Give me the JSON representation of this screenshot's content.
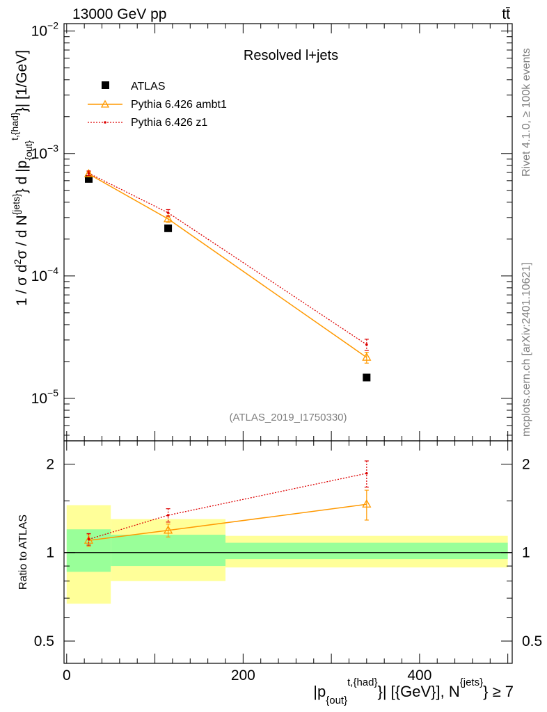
{
  "header": {
    "left": "13000 GeV pp",
    "right": "tt̄"
  },
  "side": {
    "rivet": "Rivet 4.1.0, ≥ 100k events",
    "mcplots": "mcplots.cern.ch [arXiv:2401.10621]"
  },
  "chart_data": [
    {
      "type": "scatter",
      "title": "Resolved l+jets",
      "analysis_id": "(ATLAS_2019_I1750330)",
      "xscale": "linear",
      "yscale": "log",
      "xlim": [
        -3,
        505
      ],
      "ylim": [
        4.5e-06,
        0.0115
      ],
      "ylabel": {
        "main": "1 / σ d",
        "sup2": "2",
        "sigma": "σ / d N",
        "sup_jets": "{jets}",
        "mid": "} d |p",
        "sub_out": "{out}",
        "sup_had": "t,{had}",
        "end": "}| [1/GeV]"
      },
      "yticks": [
        {
          "value": 1e-05,
          "base": "10",
          "exp": "−5"
        },
        {
          "value": 0.0001,
          "base": "10",
          "exp": "−4"
        },
        {
          "value": 0.001,
          "base": "10",
          "exp": "−3"
        },
        {
          "value": 0.01,
          "base": "10",
          "exp": "−2"
        }
      ],
      "legend": [
        {
          "name": "ATLAS",
          "color": "#000000",
          "marker": "square"
        },
        {
          "name": "Pythia 6.426 ambt1",
          "color": "#ff9900",
          "marker": "triangle"
        },
        {
          "name": "Pythia 6.426 z1",
          "color": "#dd0000",
          "marker": "dot"
        }
      ],
      "bins": [
        0,
        50,
        180,
        500
      ],
      "series": [
        {
          "name": "ATLAS",
          "x": [
            25,
            115,
            340
          ],
          "y": [
            0.00062,
            0.000245,
            1.48e-05
          ],
          "yerr": [
            2e-05,
            1e-05,
            6e-07
          ]
        },
        {
          "name": "Pythia 6.426 ambt1",
          "x": [
            25,
            115,
            340
          ],
          "y": [
            0.00068,
            0.000292,
            2.16e-05
          ],
          "yerr": [
            3e-05,
            1.8e-05,
            2.2e-06
          ]
        },
        {
          "name": "Pythia 6.426 z1",
          "x": [
            25,
            115,
            340
          ],
          "y": [
            0.00069,
            0.000328,
            2.75e-05
          ],
          "yerr": [
            3e-05,
            2e-05,
            2.9e-06
          ]
        }
      ]
    },
    {
      "type": "scatter",
      "ylabel": "Ratio to ATLAS",
      "xscale": "linear",
      "yscale": "log",
      "xlim": [
        -3,
        505
      ],
      "ylim": [
        0.42,
        2.4
      ],
      "yticks": [
        {
          "value": 0.5,
          "label": "0.5"
        },
        {
          "value": 1,
          "label": "1"
        },
        {
          "value": 2,
          "label": "2"
        }
      ],
      "xticks": [
        {
          "value": 0,
          "label": "0"
        },
        {
          "value": 200,
          "label": "200"
        },
        {
          "value": 400,
          "label": "400"
        }
      ],
      "xlabel": {
        "p": "|p",
        "sub_out": "{out}",
        "sup_had": "t,{had}",
        "rest": "}| [{GeV}], N",
        "sup_jets": "{jets}",
        "end": "} ≥ 7"
      },
      "bands": [
        {
          "x0": 0,
          "x1": 50,
          "yellow": [
            0.67,
            1.45
          ],
          "green": [
            0.86,
            1.2
          ]
        },
        {
          "x0": 50,
          "x1": 180,
          "yellow": [
            0.8,
            1.3
          ],
          "green": [
            0.9,
            1.15
          ]
        },
        {
          "x0": 180,
          "x1": 500,
          "yellow": [
            0.89,
            1.14
          ],
          "green": [
            0.95,
            1.08
          ]
        }
      ],
      "series": [
        {
          "name": "Pythia 6.426 ambt1",
          "x": [
            25,
            115,
            340
          ],
          "y": [
            1.1,
            1.19,
            1.46
          ],
          "yerr": [
            0.05,
            0.06,
            0.17
          ]
        },
        {
          "name": "Pythia 6.426 z1",
          "x": [
            25,
            115,
            340
          ],
          "y": [
            1.11,
            1.34,
            1.86
          ],
          "yerr": [
            0.05,
            0.07,
            0.19
          ]
        }
      ]
    }
  ]
}
